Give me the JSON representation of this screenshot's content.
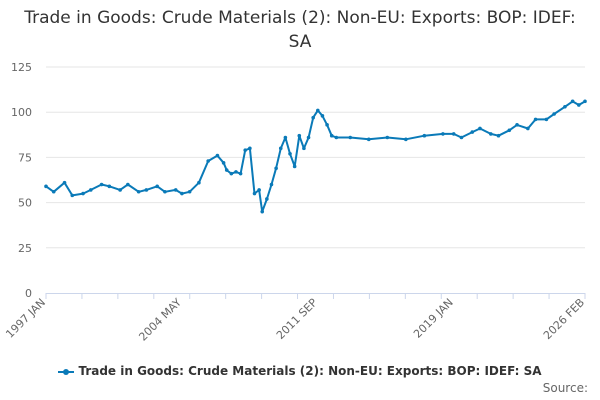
{
  "chart_data": {
    "type": "line",
    "title": "Trade in Goods: Crude Materials (2): Non-EU: Exports: BOP: IDEF: SA",
    "xlabel": "",
    "ylabel": "",
    "ylim": [
      0,
      125
    ],
    "yticks": [
      0,
      25,
      50,
      75,
      100,
      125
    ],
    "xticks": [
      "1997 JAN",
      "2004 MAY",
      "2011 SEP",
      "2019 JAN",
      "2026 FEB"
    ],
    "grid": true,
    "legend_position": "bottom",
    "color": "#0a7ab8",
    "series": [
      {
        "name": "Trade in Goods: Crude Materials (2): Non-EU: Exports: BOP: IDEF: SA",
        "x": [
          "1997-01",
          "1997-06",
          "1998-01",
          "1998-06",
          "1999-01",
          "1999-06",
          "2000-01",
          "2000-06",
          "2001-01",
          "2001-06",
          "2002-01",
          "2002-06",
          "2003-01",
          "2003-06",
          "2004-01",
          "2004-05",
          "2004-10",
          "2005-04",
          "2005-10",
          "2006-04",
          "2006-08",
          "2006-10",
          "2007-01",
          "2007-04",
          "2007-07",
          "2007-10",
          "2008-01",
          "2008-04",
          "2008-07",
          "2008-09",
          "2008-12",
          "2009-03",
          "2009-06",
          "2009-09",
          "2009-12",
          "2010-03",
          "2010-06",
          "2010-09",
          "2010-12",
          "2011-03",
          "2011-06",
          "2011-09",
          "2011-12",
          "2012-03",
          "2012-06",
          "2012-09",
          "2013-06",
          "2014-06",
          "2015-06",
          "2016-06",
          "2017-06",
          "2018-06",
          "2019-01",
          "2019-06",
          "2020-01",
          "2020-06",
          "2021-01",
          "2021-06",
          "2022-01",
          "2022-06",
          "2023-01",
          "2023-06",
          "2024-01",
          "2024-06",
          "2025-01",
          "2025-06",
          "2025-10",
          "2026-02"
        ],
        "values": [
          59,
          56,
          61,
          54,
          55,
          57,
          60,
          59,
          57,
          60,
          56,
          57,
          59,
          56,
          57,
          55,
          56,
          61,
          73,
          76,
          72,
          68,
          66,
          67,
          66,
          79,
          80,
          55,
          57,
          45,
          52,
          60,
          69,
          80,
          86,
          77,
          70,
          87,
          80,
          86,
          97,
          101,
          98,
          93,
          87,
          86,
          86,
          85,
          86,
          85,
          87,
          88,
          88,
          86,
          89,
          91,
          88,
          87,
          90,
          93,
          91,
          96,
          96,
          99,
          103,
          106,
          104,
          106
        ]
      }
    ],
    "legend_label": "Trade in Goods: Crude Materials (2): Non-EU: Exports: BOP: IDEF: SA",
    "source_label": "Source:"
  }
}
